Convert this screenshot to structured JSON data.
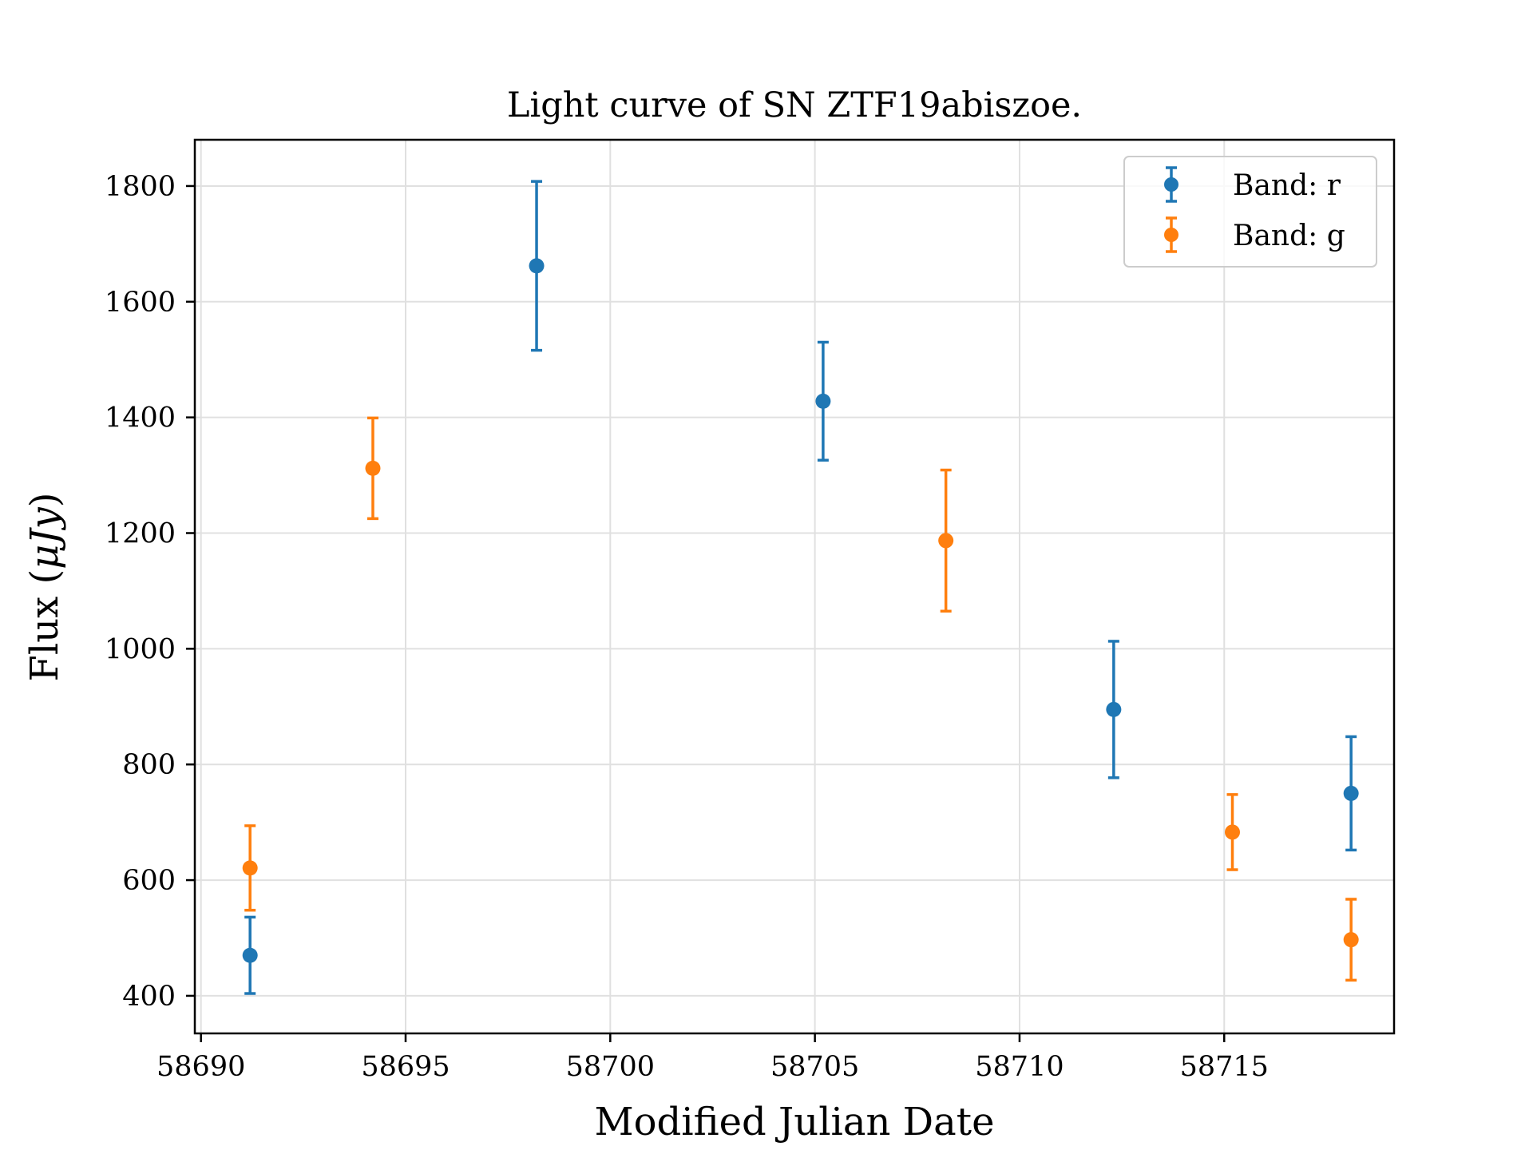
{
  "chart_data": {
    "type": "scatter",
    "title": "Light curve of SN ZTF19abiszoe.",
    "xlabel": "Modified Julian Date",
    "ylabel_prefix": "Flux (",
    "ylabel_unit": "μJy",
    "ylabel_suffix": ")",
    "xlim": [
      58689.85,
      58719.15
    ],
    "ylim": [
      335,
      1880
    ],
    "xticks": [
      58690,
      58695,
      58700,
      58705,
      58710,
      58715
    ],
    "yticks": [
      400,
      600,
      800,
      1000,
      1200,
      1400,
      1600,
      1800
    ],
    "grid": true,
    "legend_position": "top-right",
    "error_bars": true,
    "series": [
      {
        "name": "Band: r",
        "color": "#1f77b4",
        "x": [
          58691.2,
          58698.2,
          58705.2,
          58712.3,
          58718.1
        ],
        "y": [
          470,
          1662,
          1428,
          895,
          750
        ],
        "yerr": [
          66,
          146,
          102,
          118,
          98
        ]
      },
      {
        "name": "Band: g",
        "color": "#ff7f0e",
        "x": [
          58691.2,
          58694.2,
          58708.2,
          58715.2,
          58718.1
        ],
        "y": [
          621,
          1312,
          1187,
          683,
          497
        ],
        "yerr": [
          73,
          87,
          122,
          65,
          70
        ]
      }
    ]
  }
}
